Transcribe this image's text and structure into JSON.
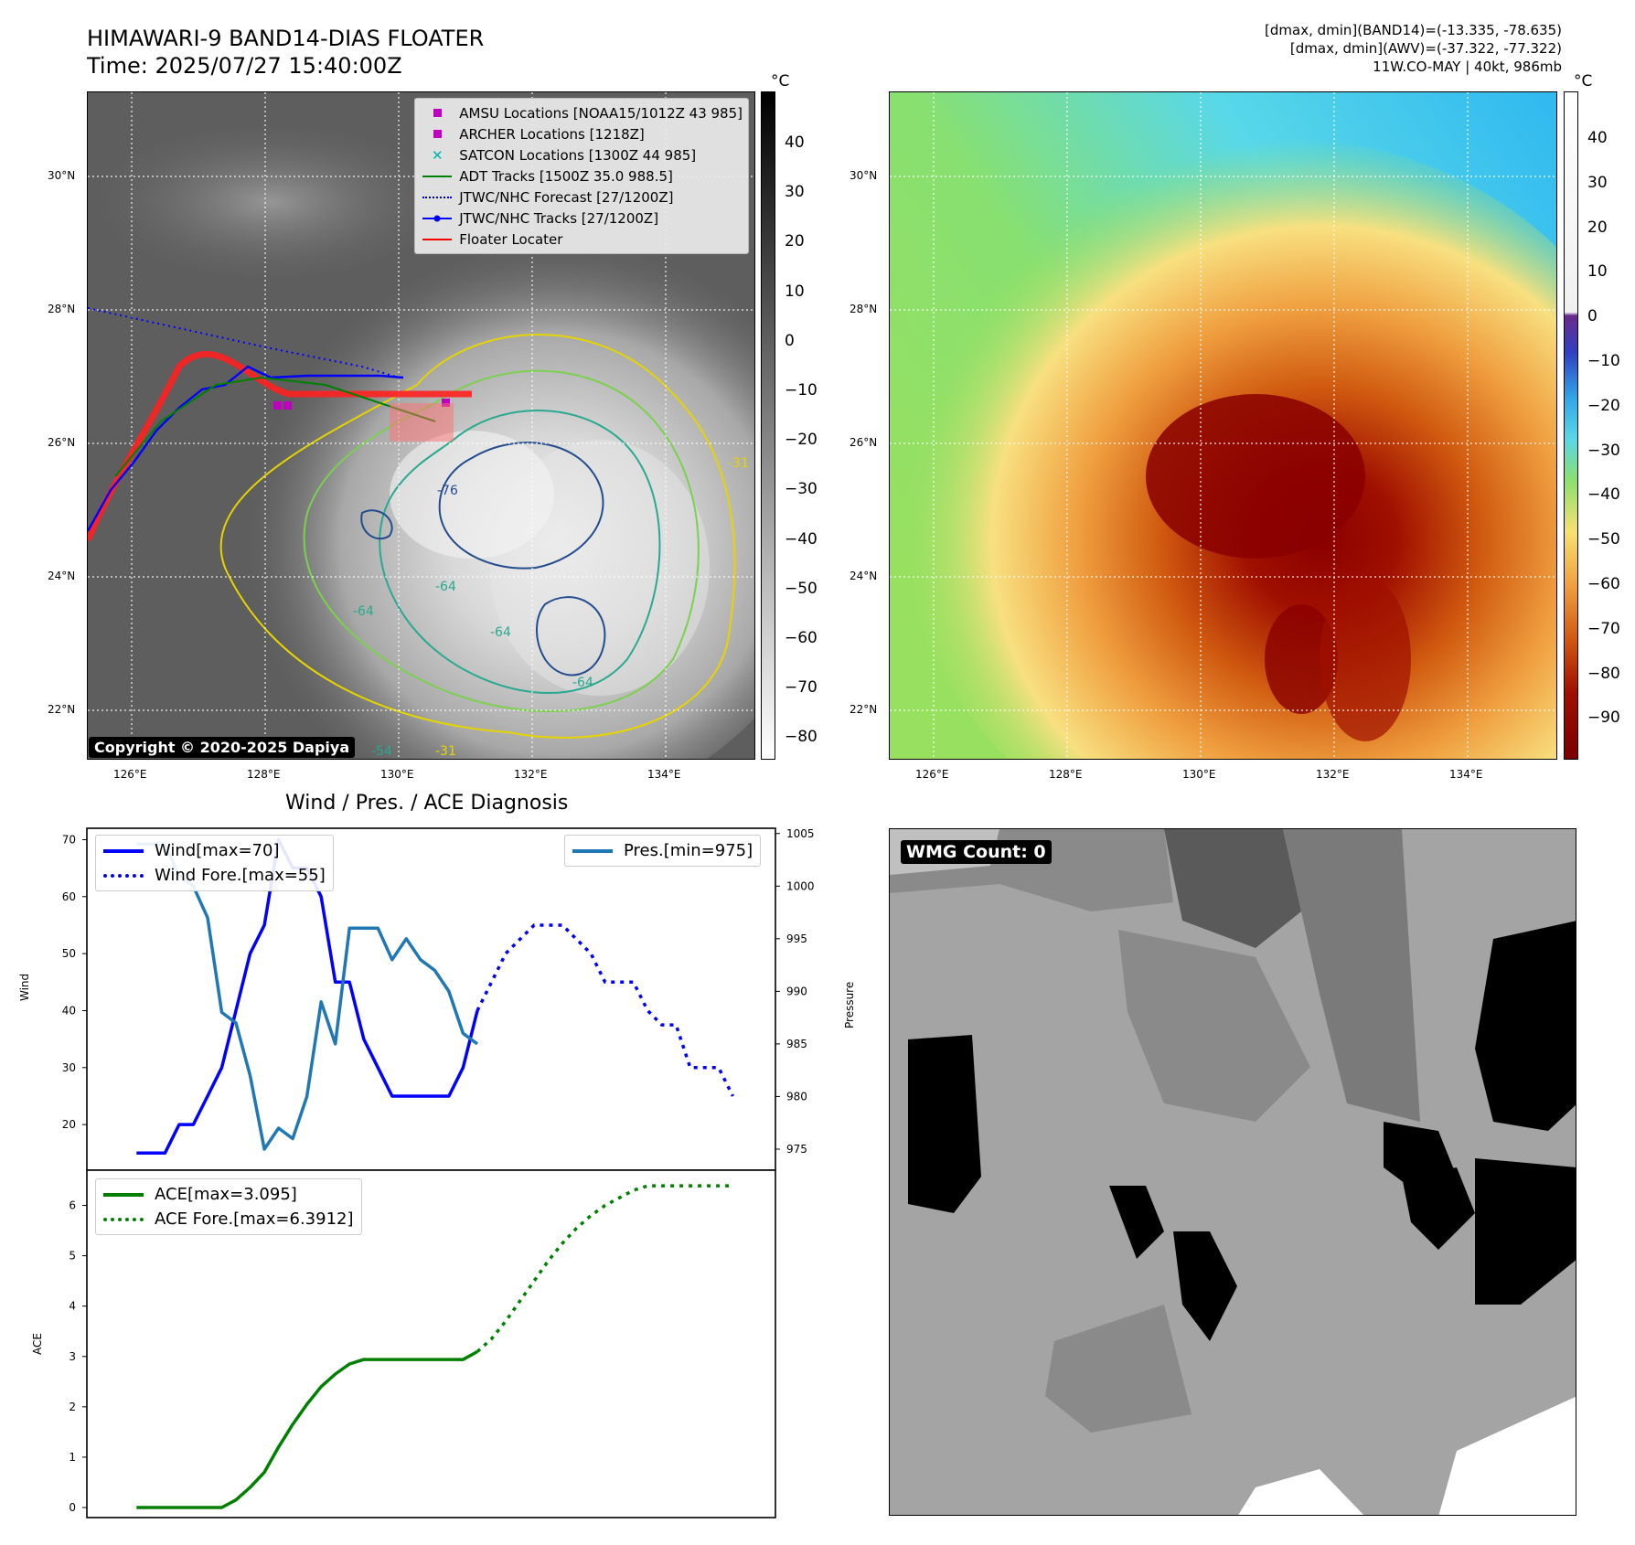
{
  "header": {
    "title_line1": "HIMAWARI-9 BAND14-DIAS FLOATER",
    "title_line2": "Time: 2025/07/27 15:40:00Z",
    "info_line1": "[dmax, dmin](BAND14)=(-13.335, -78.635)",
    "info_line2": "[dmax, dmin](AWV)=(-37.322, -77.322)",
    "info_line3": "11W.CO-MAY | 40kt, 986mb"
  },
  "map": {
    "lat_labels": [
      "30°N",
      "28°N",
      "26°N",
      "24°N",
      "22°N"
    ],
    "lon_labels": [
      "126°E",
      "128°E",
      "130°E",
      "132°E",
      "134°E"
    ],
    "copyright": "Copyright © 2020-2025 Dapiya",
    "contour_labels": [
      "-31",
      "-64",
      "-76",
      "-64",
      "-64",
      "-54",
      "-31",
      "-64"
    ],
    "legend": [
      {
        "label": "AMSU Locations [NOAA15/1012Z 43 985]",
        "color": "#c000c0",
        "icon": "square-marker"
      },
      {
        "label": "ARCHER Locations [1218Z]",
        "color": "#c000c0",
        "icon": "square-marker"
      },
      {
        "label": "SATCON Locations [1300Z 44 985]",
        "color": "#00b0b0",
        "icon": "x-marker"
      },
      {
        "label": "ADT Tracks [1500Z 35.0 988.5]",
        "color": "#008000",
        "icon": "solid-line"
      },
      {
        "label": "JTWC/NHC Forecast [27/1200Z]",
        "color": "#0000ff",
        "icon": "dotted-line"
      },
      {
        "label": "JTWC/NHC Tracks [27/1200Z]",
        "color": "#0000ff",
        "icon": "line-with-dot"
      },
      {
        "label": "Floater Locater",
        "color": "#ff0000",
        "icon": "solid-line"
      }
    ],
    "colorbar_left": {
      "unit": "°C",
      "ticks": [
        "40",
        "30",
        "20",
        "10",
        "0",
        "−10",
        "−20",
        "−30",
        "−40",
        "−50",
        "−60",
        "−70",
        "−80"
      ]
    },
    "colorbar_right": {
      "unit": "°C",
      "ticks": [
        "40",
        "30",
        "20",
        "10",
        "0",
        "−10",
        "−20",
        "−30",
        "−40",
        "−50",
        "−60",
        "−70",
        "−80",
        "−90"
      ]
    }
  },
  "wmg": {
    "label": "WMG Count: 0"
  },
  "chart_data": [
    {
      "type": "line",
      "title": "Wind / Pres. / ACE Diagnosis",
      "ylabel": "Wind",
      "ylabel_right": "Pressure",
      "ylim": [
        12,
        72
      ],
      "ylim_right": [
        973,
        1005.5
      ],
      "yticks": [
        20,
        30,
        40,
        50,
        60,
        70
      ],
      "yticks_right": [
        975,
        980,
        985,
        990,
        995,
        1000,
        1005
      ],
      "series": [
        {
          "name": "Wind[max=70]",
          "color": "#0000ff",
          "style": "solid",
          "x": [
            0,
            1,
            2,
            3,
            4,
            5,
            6,
            7,
            8,
            9,
            10,
            11,
            12,
            13,
            14,
            15,
            16,
            17,
            18,
            19,
            20,
            21,
            22,
            23,
            24
          ],
          "values": [
            15,
            15,
            15,
            20,
            20,
            25,
            30,
            40,
            50,
            55,
            70,
            65,
            65,
            60,
            45,
            45,
            35,
            30,
            25,
            25,
            25,
            25,
            25,
            30,
            40
          ]
        },
        {
          "name": "Wind Fore.[max=55]",
          "color": "#0000ff",
          "style": "dotted",
          "x": [
            24,
            25,
            26,
            27,
            28,
            29,
            30,
            31,
            32,
            33,
            34,
            35,
            36,
            37,
            38,
            39,
            40,
            41,
            42
          ],
          "values": [
            40,
            45,
            50,
            52.5,
            55,
            55,
            55,
            52.5,
            50,
            45,
            45,
            45,
            40,
            37.5,
            37.5,
            30,
            30,
            30,
            25
          ]
        },
        {
          "name": "Pres.[min=975]",
          "color": "#1f77b4",
          "style": "solid",
          "axis": "right",
          "x": [
            0,
            1,
            2,
            3,
            4,
            5,
            6,
            7,
            8,
            9,
            10,
            11,
            12,
            13,
            14,
            15,
            16,
            17,
            18,
            19,
            20,
            21,
            22,
            23,
            24
          ],
          "values": [
            1004,
            1004,
            1004,
            1001,
            1000,
            997,
            988,
            987,
            982,
            975,
            977,
            976,
            980,
            989,
            985,
            996,
            996,
            996,
            993,
            995,
            993,
            992,
            990,
            986,
            985
          ]
        }
      ]
    },
    {
      "type": "line",
      "ylabel": "ACE",
      "ylim": [
        -0.2,
        6.7
      ],
      "yticks": [
        0,
        1,
        2,
        3,
        4,
        5,
        6
      ],
      "series": [
        {
          "name": "ACE[max=3.095]",
          "color": "#008000",
          "style": "solid",
          "x": [
            0,
            1,
            2,
            3,
            4,
            5,
            6,
            7,
            8,
            9,
            10,
            11,
            12,
            13,
            14,
            15,
            16,
            17,
            18,
            19,
            20,
            21,
            22,
            23,
            24
          ],
          "values": [
            0,
            0,
            0,
            0,
            0,
            0,
            0,
            0.15,
            0.4,
            0.7,
            1.2,
            1.65,
            2.05,
            2.4,
            2.65,
            2.85,
            2.94,
            2.94,
            2.94,
            2.94,
            2.94,
            2.94,
            2.94,
            2.94,
            3.095
          ]
        },
        {
          "name": "ACE Fore.[max=6.3912]",
          "color": "#008000",
          "style": "dotted",
          "x": [
            24,
            25,
            26,
            27,
            28,
            29,
            30,
            31,
            32,
            33,
            34,
            35,
            36,
            37,
            38,
            39,
            40,
            41,
            42
          ],
          "values": [
            3.095,
            3.35,
            3.7,
            4.1,
            4.5,
            4.9,
            5.25,
            5.55,
            5.8,
            6.0,
            6.15,
            6.3,
            6.39,
            6.39,
            6.39,
            6.39,
            6.39,
            6.39,
            6.39
          ]
        }
      ]
    }
  ]
}
